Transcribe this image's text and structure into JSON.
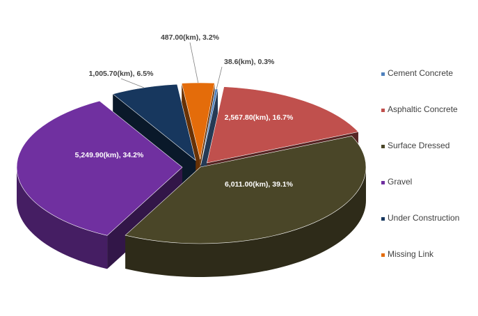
{
  "chart_data": {
    "type": "pie",
    "title": "",
    "unit": "(km)",
    "legend_position": "right",
    "slices": [
      {
        "name": "Cement Concrete",
        "value": 38.6,
        "label": "38.6(km), 0.3%",
        "color": "#4f81bd"
      },
      {
        "name": "Asphaltic Concrete",
        "value": 2567.8,
        "label": "2,567.80(km), 16.7%",
        "color": "#c0504d"
      },
      {
        "name": "Surface Dressed",
        "value": 6011.0,
        "label": "6,011.00(km), 39.1%",
        "color": "#4a4628"
      },
      {
        "name": "Gravel",
        "value": 5249.9,
        "label": "5,249.90(km), 34.2%",
        "color": "#7030a0"
      },
      {
        "name": "Under Construction",
        "value": 1005.7,
        "label": "1,005.70(km), 6.5%",
        "color": "#17375e"
      },
      {
        "name": "Missing Link",
        "value": 487.0,
        "label": "487.00(km), 3.2%",
        "color": "#e46c0a"
      }
    ]
  }
}
